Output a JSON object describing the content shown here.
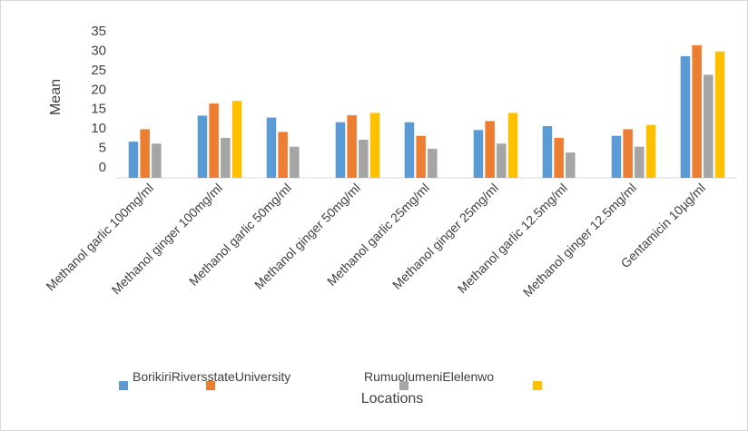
{
  "chart_data": {
    "type": "bar",
    "title": "",
    "ylabel": "Mean",
    "xlabel": "Locations",
    "ylim": [
      0,
      35
    ],
    "yticks": [
      0,
      5,
      10,
      15,
      20,
      25,
      30,
      35
    ],
    "grid": false,
    "legend_position": "bottom",
    "categories": [
      "Methanol garlic 100mg/ml",
      "Methanol ginger 100mg/ml",
      "Methanol garlic 50mg/ml",
      "Methanol ginger 50mg/ml",
      "Methanol garlic 25mg/ml",
      "Methanol ginger 25mg/ml",
      "Methanol garlic 12.5mg/ml",
      "Methanol ginger 12.5mg/ml",
      "Gentamicin 10µg/ml"
    ],
    "series": [
      {
        "color": "#5b9bd5",
        "values": [
          6.5,
          13.2,
          12.7,
          11.5,
          11.5,
          9.5,
          10.5,
          8.0,
          28.5
        ]
      },
      {
        "color": "#ed7d31",
        "values": [
          9.7,
          16.3,
          9.0,
          13.3,
          8.0,
          11.8,
          7.5,
          9.7,
          31.3
        ]
      },
      {
        "color": "#a5a5a5",
        "values": [
          6.0,
          7.5,
          5.2,
          7.0,
          4.7,
          6.0,
          3.7,
          5.2,
          23.7
        ]
      },
      {
        "color": "#ffc000",
        "values": [
          0,
          17.0,
          0,
          13.9,
          0,
          13.9,
          0,
          10.8,
          29.7
        ]
      }
    ],
    "legend_labels": [
      "BorikiriRiversstateUniversity",
      "",
      "RumuolumeniElelenwo",
      ""
    ]
  }
}
